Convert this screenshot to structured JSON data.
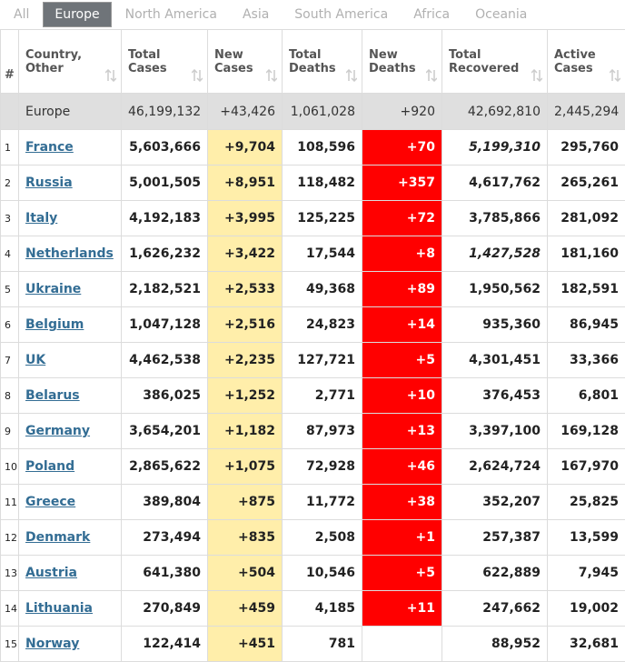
{
  "tabs": [
    "All",
    "Europe",
    "North America",
    "Asia",
    "South America",
    "Africa",
    "Oceania"
  ],
  "active_tab": 1,
  "table": {
    "headers": [
      [
        "#"
      ],
      [
        "Country,",
        "Other"
      ],
      [
        "Total",
        "Cases"
      ],
      [
        "New",
        "Cases"
      ],
      [
        "Total",
        "Deaths"
      ],
      [
        "New",
        "Deaths"
      ],
      [
        "Total",
        "Recovered"
      ],
      [
        "Active",
        "Cases"
      ]
    ],
    "total_row": [
      "Europe",
      "46,199,132",
      "+43,426",
      "1,061,028",
      "+920",
      "42,692,810",
      "2,445,294"
    ],
    "rows": [
      {
        "cells": [
          "1",
          "France",
          "5,603,666",
          "+9,704",
          "108,596",
          "+70",
          "5,199,310",
          "295,760"
        ],
        "recovered_italic": true
      },
      {
        "cells": [
          "2",
          "Russia",
          "5,001,505",
          "+8,951",
          "118,482",
          "+357",
          "4,617,762",
          "265,261"
        ]
      },
      {
        "cells": [
          "3",
          "Italy",
          "4,192,183",
          "+3,995",
          "125,225",
          "+72",
          "3,785,866",
          "281,092"
        ]
      },
      {
        "cells": [
          "4",
          "Netherlands",
          "1,626,232",
          "+3,422",
          "17,544",
          "+8",
          "1,427,528",
          "181,160"
        ],
        "recovered_italic": true
      },
      {
        "cells": [
          "5",
          "Ukraine",
          "2,182,521",
          "+2,533",
          "49,368",
          "+89",
          "1,950,562",
          "182,591"
        ]
      },
      {
        "cells": [
          "6",
          "Belgium",
          "1,047,128",
          "+2,516",
          "24,823",
          "+14",
          "935,360",
          "86,945"
        ]
      },
      {
        "cells": [
          "7",
          "UK",
          "4,462,538",
          "+2,235",
          "127,721",
          "+5",
          "4,301,451",
          "33,366"
        ]
      },
      {
        "cells": [
          "8",
          "Belarus",
          "386,025",
          "+1,252",
          "2,771",
          "+10",
          "376,453",
          "6,801"
        ]
      },
      {
        "cells": [
          "9",
          "Germany",
          "3,654,201",
          "+1,182",
          "87,973",
          "+13",
          "3,397,100",
          "169,128"
        ]
      },
      {
        "cells": [
          "10",
          "Poland",
          "2,865,622",
          "+1,075",
          "72,928",
          "+46",
          "2,624,724",
          "167,970"
        ]
      },
      {
        "cells": [
          "11",
          "Greece",
          "389,804",
          "+875",
          "11,772",
          "+38",
          "352,207",
          "25,825"
        ]
      },
      {
        "cells": [
          "12",
          "Denmark",
          "273,494",
          "+835",
          "2,508",
          "+1",
          "257,387",
          "13,599"
        ]
      },
      {
        "cells": [
          "13",
          "Austria",
          "641,380",
          "+504",
          "10,546",
          "+5",
          "622,889",
          "7,945"
        ]
      },
      {
        "cells": [
          "14",
          "Lithuania",
          "270,849",
          "+459",
          "4,185",
          "+11",
          "247,662",
          "19,002"
        ]
      },
      {
        "cells": [
          "15",
          "Norway",
          "122,414",
          "+451",
          "781",
          null,
          "88,952",
          "32,681"
        ]
      }
    ]
  }
}
